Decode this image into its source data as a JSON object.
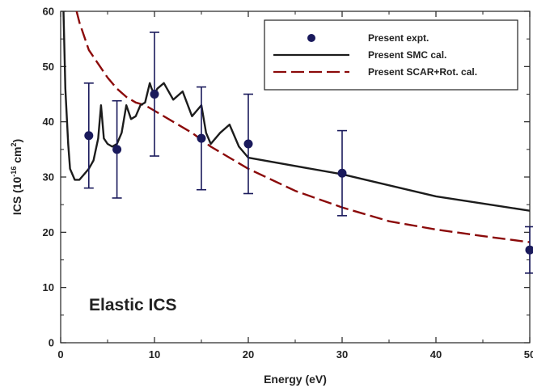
{
  "chart_data": {
    "type": "line",
    "xlabel": "Energy (eV)",
    "ylabel": {
      "main": "ICS (10",
      "exp": "-16",
      "unit": " cm",
      "sq": "2",
      "close": ")"
    },
    "xlim": [
      0,
      50
    ],
    "ylim": [
      0,
      60
    ],
    "xticks": [
      0,
      10,
      20,
      30,
      40,
      50
    ],
    "yticks": [
      0,
      10,
      20,
      30,
      40,
      50,
      60
    ],
    "grid": false,
    "legend_placement": "top-right",
    "annotation": "Elastic ICS",
    "series": [
      {
        "name": "Present expt.",
        "style": "markers-with-errorbars",
        "color": "#1a1a5c",
        "x": [
          3,
          6,
          10,
          15,
          20,
          30,
          50
        ],
        "y": [
          37.5,
          35.0,
          45.0,
          37.0,
          36.0,
          30.7,
          16.8
        ],
        "err": [
          9.5,
          8.8,
          11.2,
          9.3,
          9.0,
          7.7,
          4.2
        ]
      },
      {
        "name": "Present SMC cal.",
        "style": "solid",
        "color": "#1c1c1c",
        "x": [
          0.3,
          0.5,
          0.8,
          1.0,
          1.5,
          2.0,
          2.5,
          3.0,
          3.5,
          4.0,
          4.3,
          4.6,
          5.0,
          5.5,
          6.0,
          6.5,
          7.0,
          7.5,
          8.0,
          8.5,
          9.0,
          9.5,
          9.7,
          10.0,
          10.3,
          11.0,
          12.0,
          13.0,
          14.0,
          14.5,
          15.0,
          15.5,
          16.0,
          17.0,
          18.0,
          19.0,
          20.0,
          30.0,
          40.0,
          50.0
        ],
        "y": [
          60,
          46,
          36,
          31.5,
          29.5,
          29.5,
          30.5,
          31.5,
          33,
          37,
          43,
          37,
          36,
          35.5,
          36,
          38,
          43,
          40.5,
          41,
          43,
          43.5,
          47,
          46,
          45,
          46,
          47,
          44,
          45.5,
          41,
          42,
          43,
          38,
          36,
          38,
          39.5,
          35.5,
          33.5,
          30.5,
          26.5,
          23.9
        ]
      },
      {
        "name": "Present SCAR+Rot. cal.",
        "style": "dashed",
        "color": "#8b0a0a",
        "x": [
          1.7,
          2.0,
          2.5,
          3.0,
          4.0,
          5.0,
          6.0,
          7.0,
          8.0,
          9.0,
          10.0,
          12.0,
          14.0,
          16.0,
          18.0,
          20.0,
          25.0,
          30.0,
          35.0,
          40.0,
          45.0,
          50.0
        ],
        "y": [
          60,
          58,
          55.5,
          53,
          50.5,
          48,
          46,
          44.5,
          43.5,
          43,
          42,
          40,
          38,
          35.5,
          33.5,
          31.5,
          27.5,
          24.5,
          22,
          20.5,
          19.3,
          18.2
        ]
      }
    ]
  }
}
